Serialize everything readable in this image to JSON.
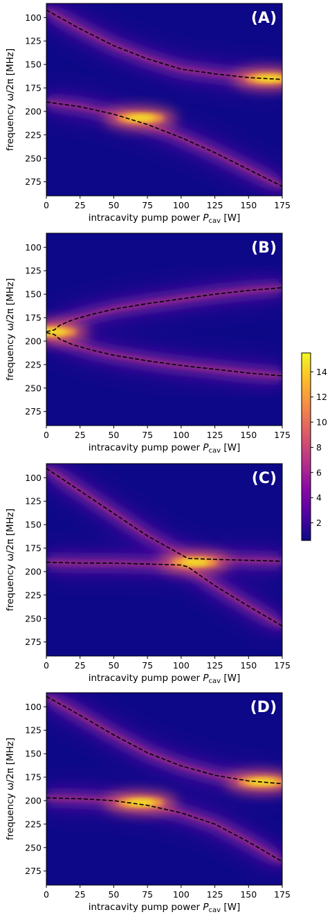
{
  "chart_data": [
    {
      "type": "heatmap",
      "panel_label": "(A)",
      "xlabel": "intracavity pump power",
      "xlabel_symbol": "P",
      "xlabel_sub": "cav",
      "xlabel_unit": "[W]",
      "ylabel": "frequency ω/2π [MHz]",
      "xlim": [
        0,
        175
      ],
      "ylim": [
        290,
        85
      ],
      "xticks": [
        0,
        25,
        50,
        75,
        100,
        125,
        150,
        175
      ],
      "yticks": [
        100,
        125,
        150,
        175,
        200,
        225,
        250,
        275
      ],
      "curves": [
        {
          "x": [
            0,
            25,
            50,
            75,
            100,
            125,
            150,
            175
          ],
          "y": [
            92,
            112,
            130,
            144,
            155,
            160,
            164,
            166
          ]
        },
        {
          "x": [
            0,
            25,
            50,
            75,
            100,
            125,
            150,
            175
          ],
          "y": [
            190,
            195,
            203,
            214,
            228,
            244,
            262,
            280
          ]
        }
      ],
      "highlights": [
        {
          "x": 70,
          "y": 207,
          "intensity": 15
        },
        {
          "x": 165,
          "y": 165,
          "intensity": 15
        }
      ]
    },
    {
      "type": "heatmap",
      "panel_label": "(B)",
      "xlabel": "intracavity pump power",
      "xlabel_symbol": "P",
      "xlabel_sub": "cav",
      "xlabel_unit": "[W]",
      "ylabel": "frequency ω/2π [MHz]",
      "xlim": [
        0,
        175
      ],
      "ylim": [
        290,
        85
      ],
      "xticks": [
        0,
        25,
        50,
        75,
        100,
        125,
        150,
        175
      ],
      "yticks": [
        100,
        125,
        150,
        175,
        200,
        225,
        250,
        275
      ],
      "curves": [
        {
          "x": [
            0,
            3,
            6,
            10,
            20,
            35,
            50,
            75,
            100,
            125,
            150,
            175
          ],
          "y": [
            190,
            189,
            188,
            183,
            177,
            171,
            166,
            160,
            155,
            150,
            146,
            143
          ]
        },
        {
          "x": [
            0,
            3,
            6,
            10,
            20,
            35,
            50,
            75,
            100,
            125,
            150,
            175
          ],
          "y": [
            191,
            192,
            193,
            198,
            204,
            210,
            215,
            221,
            226,
            230,
            234,
            237
          ]
        }
      ],
      "highlights": [
        {
          "x": 5,
          "y": 190,
          "intensity": 12
        }
      ]
    },
    {
      "type": "heatmap",
      "panel_label": "(C)",
      "xlabel": "intracavity pump power",
      "xlabel_symbol": "P",
      "xlabel_sub": "cav",
      "xlabel_unit": "[W]",
      "ylabel": "frequency ω/2π [MHz]",
      "xlim": [
        0,
        175
      ],
      "ylim": [
        290,
        85
      ],
      "xticks": [
        0,
        25,
        50,
        75,
        100,
        125,
        150,
        175
      ],
      "yticks": [
        100,
        125,
        150,
        175,
        200,
        225,
        250,
        275
      ],
      "curves": [
        {
          "x": [
            0,
            25,
            50,
            75,
            100,
            105,
            125,
            150,
            175
          ],
          "y": [
            90,
            114,
            138,
            162,
            182,
            186,
            187,
            188,
            189
          ]
        },
        {
          "x": [
            0,
            25,
            50,
            75,
            100,
            105,
            125,
            150,
            175
          ],
          "y": [
            190,
            191,
            191,
            192,
            193,
            195,
            215,
            237,
            258
          ]
        }
      ],
      "highlights": [
        {
          "x": 110,
          "y": 190,
          "intensity": 15
        }
      ]
    },
    {
      "type": "heatmap",
      "panel_label": "(D)",
      "xlabel": "intracavity pump power",
      "xlabel_symbol": "P",
      "xlabel_sub": "cav",
      "xlabel_unit": "[W]",
      "ylabel": "frequency ω/2π [MHz]",
      "xlim": [
        0,
        175
      ],
      "ylim": [
        290,
        85
      ],
      "xticks": [
        0,
        25,
        50,
        75,
        100,
        125,
        150,
        175
      ],
      "yticks": [
        100,
        125,
        150,
        175,
        200,
        225,
        250,
        275
      ],
      "curves": [
        {
          "x": [
            0,
            25,
            50,
            75,
            100,
            125,
            150,
            175
          ],
          "y": [
            89,
            109,
            130,
            149,
            163,
            173,
            179,
            182
          ]
        },
        {
          "x": [
            0,
            25,
            50,
            75,
            100,
            125,
            150,
            175
          ],
          "y": [
            197,
            198,
            200,
            205,
            213,
            225,
            244,
            265
          ]
        }
      ],
      "highlights": [
        {
          "x": 70,
          "y": 202,
          "intensity": 13
        },
        {
          "x": 160,
          "y": 180,
          "intensity": 14
        }
      ]
    }
  ],
  "colorbar": {
    "colormap": "plasma",
    "min": 0.6,
    "max": 15.5,
    "ticks": [
      2,
      4,
      6,
      8,
      10,
      12,
      14
    ],
    "colors": [
      "#0d0887",
      "#5302a3",
      "#8b0aa5",
      "#b83289",
      "#db5c68",
      "#f48849",
      "#febd2a",
      "#f0f921"
    ]
  }
}
